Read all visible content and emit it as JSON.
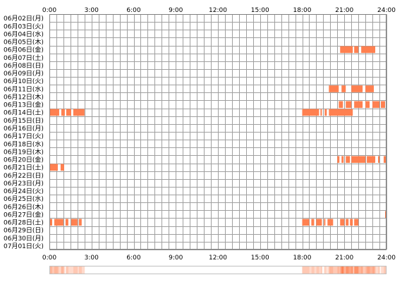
{
  "chart_data": {
    "type": "heatmap",
    "title": "",
    "xlabel": "",
    "ylabel": "",
    "x_ticks": [
      "0:00",
      "3:00",
      "6:00",
      "9:00",
      "12:00",
      "15:00",
      "18:00",
      "21:00",
      "24:00"
    ],
    "x_range": [
      0,
      24
    ],
    "grid": true,
    "days": [
      {
        "label": "06月02日(月)",
        "segments": []
      },
      {
        "label": "06月03日(火)",
        "segments": []
      },
      {
        "label": "06月04日(水)",
        "segments": []
      },
      {
        "label": "06月05日(木)",
        "segments": []
      },
      {
        "label": "06月06日(金)",
        "segments": [
          [
            20.7,
            21.6
          ],
          [
            21.7,
            22.0
          ],
          [
            22.2,
            23.2
          ]
        ]
      },
      {
        "label": "06月07日(土)",
        "segments": []
      },
      {
        "label": "06月08日(日)",
        "segments": []
      },
      {
        "label": "06月09日(月)",
        "segments": []
      },
      {
        "label": "06月10日(火)",
        "segments": []
      },
      {
        "label": "06月11日(水)",
        "segments": [
          [
            19.9,
            20.6
          ],
          [
            20.8,
            21.1
          ],
          [
            21.5,
            22.3
          ],
          [
            22.5,
            23.1
          ]
        ]
      },
      {
        "label": "06月12日(木)",
        "segments": []
      },
      {
        "label": "06月13日(金)",
        "segments": [
          [
            20.6,
            20.9
          ],
          [
            21.1,
            21.5
          ],
          [
            21.7,
            22.3
          ],
          [
            22.5,
            22.8
          ],
          [
            23.0,
            23.5
          ],
          [
            23.6,
            23.9
          ],
          [
            24.0,
            24.2
          ]
        ]
      },
      {
        "label": "06月14日(土)",
        "segments": [
          [
            0.0,
            0.7
          ],
          [
            0.85,
            1.1
          ],
          [
            1.2,
            1.55
          ],
          [
            1.7,
            2.5
          ],
          [
            18.0,
            19.2
          ],
          [
            19.3,
            19.4
          ],
          [
            19.6,
            19.75
          ],
          [
            19.9,
            21.6
          ]
        ]
      },
      {
        "label": "06月15日(日)",
        "segments": []
      },
      {
        "label": "06月16日(月)",
        "segments": []
      },
      {
        "label": "06月17日(火)",
        "segments": []
      },
      {
        "label": "06月18日(水)",
        "segments": []
      },
      {
        "label": "06月19日(木)",
        "segments": []
      },
      {
        "label": "06月20日(金)",
        "segments": [
          [
            20.5,
            20.65
          ],
          [
            20.8,
            20.95
          ],
          [
            21.1,
            21.4
          ],
          [
            21.5,
            22.5
          ],
          [
            22.6,
            23.2
          ],
          [
            23.4,
            23.5
          ],
          [
            23.8,
            24.1
          ]
        ]
      },
      {
        "label": "06月21日(土)",
        "segments": [
          [
            0.0,
            0.6
          ],
          [
            0.8,
            1.05
          ]
        ]
      },
      {
        "label": "06月22日(日)",
        "segments": []
      },
      {
        "label": "06月23日(月)",
        "segments": []
      },
      {
        "label": "06月24日(火)",
        "segments": []
      },
      {
        "label": "06月25日(水)",
        "segments": []
      },
      {
        "label": "06月26日(木)",
        "segments": []
      },
      {
        "label": "06月27日(金)",
        "segments": [
          [
            23.9,
            24.05
          ]
        ]
      },
      {
        "label": "06月28日(土)",
        "segments": [
          [
            0.0,
            0.2
          ],
          [
            0.35,
            1.0
          ],
          [
            1.15,
            1.35
          ],
          [
            1.55,
            2.0
          ],
          [
            2.1,
            2.3
          ],
          [
            18.0,
            18.5
          ],
          [
            18.65,
            18.85
          ],
          [
            19.0,
            19.4
          ],
          [
            19.55,
            19.65
          ],
          [
            19.8,
            20.2
          ],
          [
            20.7,
            21.0
          ],
          [
            21.1,
            21.3
          ],
          [
            21.4,
            21.6
          ],
          [
            21.7,
            22.0
          ]
        ]
      },
      {
        "label": "06月29日(日)",
        "segments": []
      },
      {
        "label": "06月30日(月)",
        "segments": []
      },
      {
        "label": "07月01日(火)",
        "segments": []
      }
    ],
    "colors": {
      "mark": "#ff8050",
      "grid": "#a0a0a0",
      "frame": "#808080",
      "summary_peak": "#ff8050",
      "summary_base": "#ffffff"
    }
  }
}
